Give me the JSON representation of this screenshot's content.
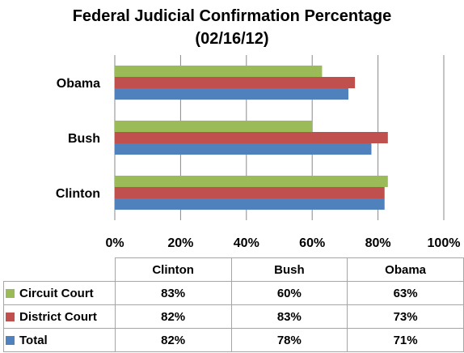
{
  "colors": {
    "circuit": "#9bbb59",
    "district": "#c0504d",
    "total": "#4f81bd",
    "grid": "#888888"
  },
  "chart_data": {
    "type": "bar",
    "orientation": "horizontal",
    "title_line1": "Federal Judicial Confirmation Percentage",
    "title_line2": "(02/16/12)",
    "categories": [
      "Clinton",
      "Bush",
      "Obama"
    ],
    "series": [
      {
        "name": "Circuit Court",
        "values": [
          83,
          60,
          63
        ]
      },
      {
        "name": "District Court",
        "values": [
          82,
          83,
          73
        ]
      },
      {
        "name": "Total",
        "values": [
          82,
          78,
          71
        ]
      }
    ],
    "xlim": [
      0,
      100
    ],
    "x_ticks": [
      "0%",
      "20%",
      "40%",
      "60%",
      "80%",
      "100%"
    ],
    "grid": true,
    "legend": "data-table"
  },
  "table": {
    "columns": [
      "Clinton",
      "Bush",
      "Obama"
    ],
    "rows": [
      {
        "label": "Circuit Court",
        "values": [
          "83%",
          "60%",
          "63%"
        ]
      },
      {
        "label": "District Court",
        "values": [
          "82%",
          "83%",
          "73%"
        ]
      },
      {
        "label": "Total",
        "values": [
          "82%",
          "78%",
          "71%"
        ]
      }
    ]
  }
}
